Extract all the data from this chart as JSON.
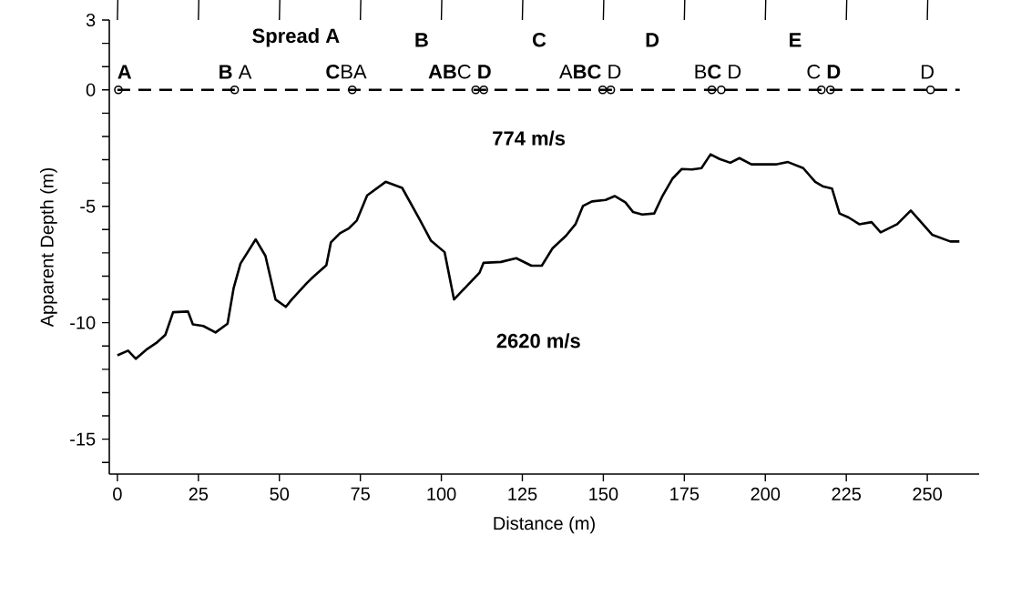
{
  "chart_data": {
    "type": "line",
    "xlabel": "Distance (m)",
    "ylabel": "Apparent Depth (m)",
    "xlim": [
      -2.5,
      266
    ],
    "ylim": [
      -16.5,
      3
    ],
    "xticks": [
      0,
      25,
      50,
      75,
      100,
      125,
      150,
      175,
      200,
      225,
      250
    ],
    "yticks": [
      3,
      {
        "value": 2,
        "label": null
      },
      {
        "value": 1,
        "label": null
      },
      0,
      {
        "value": -1,
        "label": null
      },
      {
        "value": -2,
        "label": null
      },
      {
        "value": -3,
        "label": null
      },
      {
        "value": -4,
        "label": null
      },
      -5,
      {
        "value": -6,
        "label": null
      },
      {
        "value": -7,
        "label": null
      },
      {
        "value": -8,
        "label": null
      },
      {
        "value": -9,
        "label": null
      },
      -10,
      {
        "value": -11,
        "label": null
      },
      {
        "value": -12,
        "label": null
      },
      {
        "value": -13,
        "label": null
      },
      {
        "value": -14,
        "label": null
      },
      -15,
      {
        "value": -16,
        "label": null
      }
    ],
    "series": [
      {
        "color": "#000000",
        "x": [
          0,
          3.3,
          5.7,
          9.2,
          12.0,
          14.8,
          17.2,
          21.8,
          23.3,
          26.5,
          30.3,
          34.0,
          35.9,
          38.0,
          42.7,
          45.7,
          48.8,
          52.0,
          53.7,
          58.4,
          60.3,
          64.5,
          65.9,
          68.7,
          71.5,
          73.9,
          77.1,
          82.8,
          87.9,
          93.1,
          96.8,
          101.0,
          103.9,
          111.8,
          113.0,
          118.4,
          123.1,
          127.8,
          131.0,
          134.3,
          138.5,
          141.4,
          143.7,
          146.5,
          150.7,
          153.5,
          156.8,
          159.2,
          162.0,
          165.7,
          168.1,
          171.3,
          174.2,
          177.4,
          180.3,
          183.1,
          185.9,
          189.2,
          192.0,
          195.7,
          203.2,
          207.0,
          211.7,
          215.4,
          217.7,
          220.6,
          222.9,
          225.7,
          229.0,
          232.8,
          235.6,
          240.7,
          244.9,
          248.2,
          251.5,
          257.1,
          259.9
        ],
        "values": [
          -11.4,
          -11.2,
          -11.55,
          -11.13,
          -10.87,
          -10.52,
          -9.55,
          -9.52,
          -10.07,
          -10.14,
          -10.42,
          -10.04,
          -8.5,
          -7.46,
          -6.42,
          -7.13,
          -9.0,
          -9.32,
          -9.02,
          -8.31,
          -8.05,
          -7.53,
          -6.55,
          -6.16,
          -5.94,
          -5.61,
          -4.53,
          -3.95,
          -4.21,
          -5.51,
          -6.48,
          -6.97,
          -9.0,
          -7.85,
          -7.43,
          -7.39,
          -7.23,
          -7.55,
          -7.55,
          -6.81,
          -6.26,
          -5.77,
          -4.99,
          -4.79,
          -4.73,
          -4.56,
          -4.83,
          -5.25,
          -5.35,
          -5.31,
          -4.6,
          -3.82,
          -3.4,
          -3.42,
          -3.36,
          -2.77,
          -2.97,
          -3.13,
          -2.93,
          -3.2,
          -3.2,
          -3.1,
          -3.36,
          -3.95,
          -4.14,
          -4.24,
          -5.31,
          -5.48,
          -5.77,
          -5.68,
          -6.12,
          -5.77,
          -5.18,
          -5.7,
          -6.22,
          -6.51,
          -6.51
        ]
      },
      {
        "type": "line",
        "line_style": "dashed",
        "color": "#000000",
        "x": [
          0,
          260
        ],
        "values": [
          0,
          0
        ]
      },
      {
        "type": "scatter",
        "marker": "circle",
        "color": "#000000",
        "x": [
          0.3,
          36.2,
          72.5,
          110.6,
          113.1,
          149.8,
          152.3,
          183.5,
          186.4,
          217.3,
          220.1,
          251.0
        ],
        "values": [
          0,
          0,
          0,
          0,
          0,
          0,
          0,
          0,
          0,
          0,
          0,
          0
        ]
      }
    ],
    "annotations": [
      "**Spread A**",
      "**B**",
      "**C**",
      "**D**",
      "**E**",
      "**A**",
      "**B** A",
      "**C**BA",
      "**AB**C **D**",
      "A**BC** D",
      "B**C** D",
      "C **D**",
      "D",
      "**774 m/s**",
      "**2620 m/s**"
    ]
  }
}
